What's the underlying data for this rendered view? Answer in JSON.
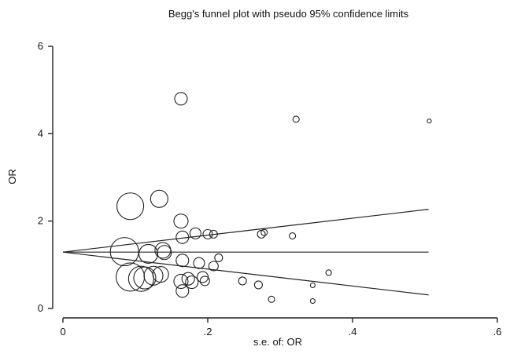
{
  "chart_data": {
    "type": "scatter",
    "title": "Begg's funnel plot with pseudo 95% confidence limits",
    "xlabel": "s.e. of: OR",
    "ylabel": "OR",
    "xlim": [
      0,
      0.6
    ],
    "ylim": [
      0,
      6
    ],
    "x_ticks": [
      0,
      0.2,
      0.4,
      0.6
    ],
    "x_tick_labels": [
      "0",
      ".2",
      ".4",
      ".6"
    ],
    "y_ticks": [
      0,
      2,
      4,
      6
    ],
    "y_tick_labels": [
      "0",
      "2",
      "4",
      "6"
    ],
    "grid": false,
    "pooled_estimate": 1.29,
    "pseudo_ci_lines": [
      {
        "x": [
          0,
          0.505
        ],
        "y": [
          1.29,
          2.27
        ]
      },
      {
        "x": [
          0,
          0.505
        ],
        "y": [
          1.29,
          0.31
        ]
      },
      {
        "x": [
          0,
          0.505
        ],
        "y": [
          1.29,
          1.29
        ]
      }
    ],
    "points": [
      {
        "x": 0.163,
        "y": 4.8,
        "r": 8
      },
      {
        "x": 0.322,
        "y": 4.33,
        "r": 4
      },
      {
        "x": 0.506,
        "y": 4.29,
        "r": 2.5
      },
      {
        "x": 0.093,
        "y": 2.34,
        "r": 17
      },
      {
        "x": 0.133,
        "y": 2.51,
        "r": 11
      },
      {
        "x": 0.163,
        "y": 2.0,
        "r": 9
      },
      {
        "x": 0.165,
        "y": 1.63,
        "r": 8
      },
      {
        "x": 0.183,
        "y": 1.72,
        "r": 7
      },
      {
        "x": 0.2,
        "y": 1.7,
        "r": 6
      },
      {
        "x": 0.208,
        "y": 1.7,
        "r": 5
      },
      {
        "x": 0.274,
        "y": 1.7,
        "r": 5
      },
      {
        "x": 0.278,
        "y": 1.74,
        "r": 4
      },
      {
        "x": 0.317,
        "y": 1.66,
        "r": 4
      },
      {
        "x": 0.085,
        "y": 1.3,
        "r": 18
      },
      {
        "x": 0.118,
        "y": 1.25,
        "r": 12
      },
      {
        "x": 0.138,
        "y": 1.33,
        "r": 10
      },
      {
        "x": 0.14,
        "y": 1.28,
        "r": 9
      },
      {
        "x": 0.165,
        "y": 1.1,
        "r": 8
      },
      {
        "x": 0.188,
        "y": 1.04,
        "r": 7
      },
      {
        "x": 0.208,
        "y": 0.97,
        "r": 6
      },
      {
        "x": 0.215,
        "y": 1.16,
        "r": 5
      },
      {
        "x": 0.093,
        "y": 0.72,
        "r": 18
      },
      {
        "x": 0.108,
        "y": 0.68,
        "r": 16
      },
      {
        "x": 0.113,
        "y": 0.7,
        "r": 14
      },
      {
        "x": 0.125,
        "y": 0.75,
        "r": 12
      },
      {
        "x": 0.135,
        "y": 0.78,
        "r": 10
      },
      {
        "x": 0.163,
        "y": 0.62,
        "r": 9
      },
      {
        "x": 0.178,
        "y": 0.6,
        "r": 8
      },
      {
        "x": 0.173,
        "y": 0.68,
        "r": 8
      },
      {
        "x": 0.193,
        "y": 0.72,
        "r": 7
      },
      {
        "x": 0.196,
        "y": 0.63,
        "r": 6
      },
      {
        "x": 0.165,
        "y": 0.4,
        "r": 8
      },
      {
        "x": 0.248,
        "y": 0.63,
        "r": 5
      },
      {
        "x": 0.27,
        "y": 0.54,
        "r": 5
      },
      {
        "x": 0.288,
        "y": 0.21,
        "r": 4
      },
      {
        "x": 0.345,
        "y": 0.53,
        "r": 3
      },
      {
        "x": 0.345,
        "y": 0.17,
        "r": 3
      },
      {
        "x": 0.367,
        "y": 0.82,
        "r": 3.5
      }
    ]
  }
}
